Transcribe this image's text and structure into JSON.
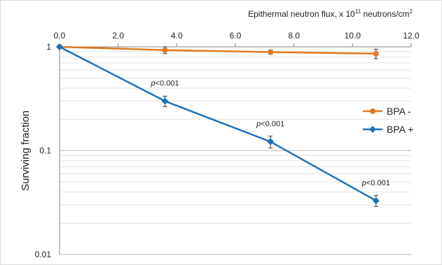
{
  "chart_data": {
    "type": "line",
    "title": "",
    "x_axis": {
      "label": "Epithermal neutron flux, x 10",
      "label_exponent": "11",
      "label_unit": " neutrons/cm",
      "label_unit_exponent": "2",
      "position": "top",
      "range": [
        0.0,
        12.0
      ],
      "ticks": [
        "0.0",
        "2.0",
        "4.0",
        "6.0",
        "8.0",
        "10.0",
        "12.0"
      ]
    },
    "y_axis": {
      "label": "Surviving fraction",
      "scale": "log",
      "range": [
        0.01,
        1
      ],
      "ticks": [
        {
          "value": 1,
          "label": "1"
        },
        {
          "value": 0.1,
          "label": "0.1"
        },
        {
          "value": 0.01,
          "label": "0.01"
        }
      ]
    },
    "grid": true,
    "legend_position": "right",
    "series": [
      {
        "name": "BPA -",
        "color": "#e07a22",
        "marker": "circle",
        "points": [
          {
            "x": 0.0,
            "y": 1.0,
            "err": 0.0
          },
          {
            "x": 3.6,
            "y": 0.93,
            "err": 0.07
          },
          {
            "x": 7.2,
            "y": 0.89,
            "err": 0.04
          },
          {
            "x": 10.8,
            "y": 0.86,
            "err": 0.09
          }
        ]
      },
      {
        "name": "BPA +",
        "color": "#1f73b7",
        "marker": "diamond",
        "points": [
          {
            "x": 0.0,
            "y": 1.0,
            "err": 0.0
          },
          {
            "x": 3.6,
            "y": 0.3,
            "err": 0.035
          },
          {
            "x": 7.2,
            "y": 0.122,
            "err": 0.016
          },
          {
            "x": 10.8,
            "y": 0.033,
            "err": 0.004
          }
        ]
      }
    ],
    "annotations": [
      {
        "prefix": "p",
        "text": "<0.001",
        "x": 3.6,
        "y": 0.3
      },
      {
        "prefix": "p",
        "text": "<0.001",
        "x": 7.2,
        "y": 0.122
      },
      {
        "prefix": "p",
        "text": "<0.001",
        "x": 10.8,
        "y": 0.033
      }
    ]
  }
}
